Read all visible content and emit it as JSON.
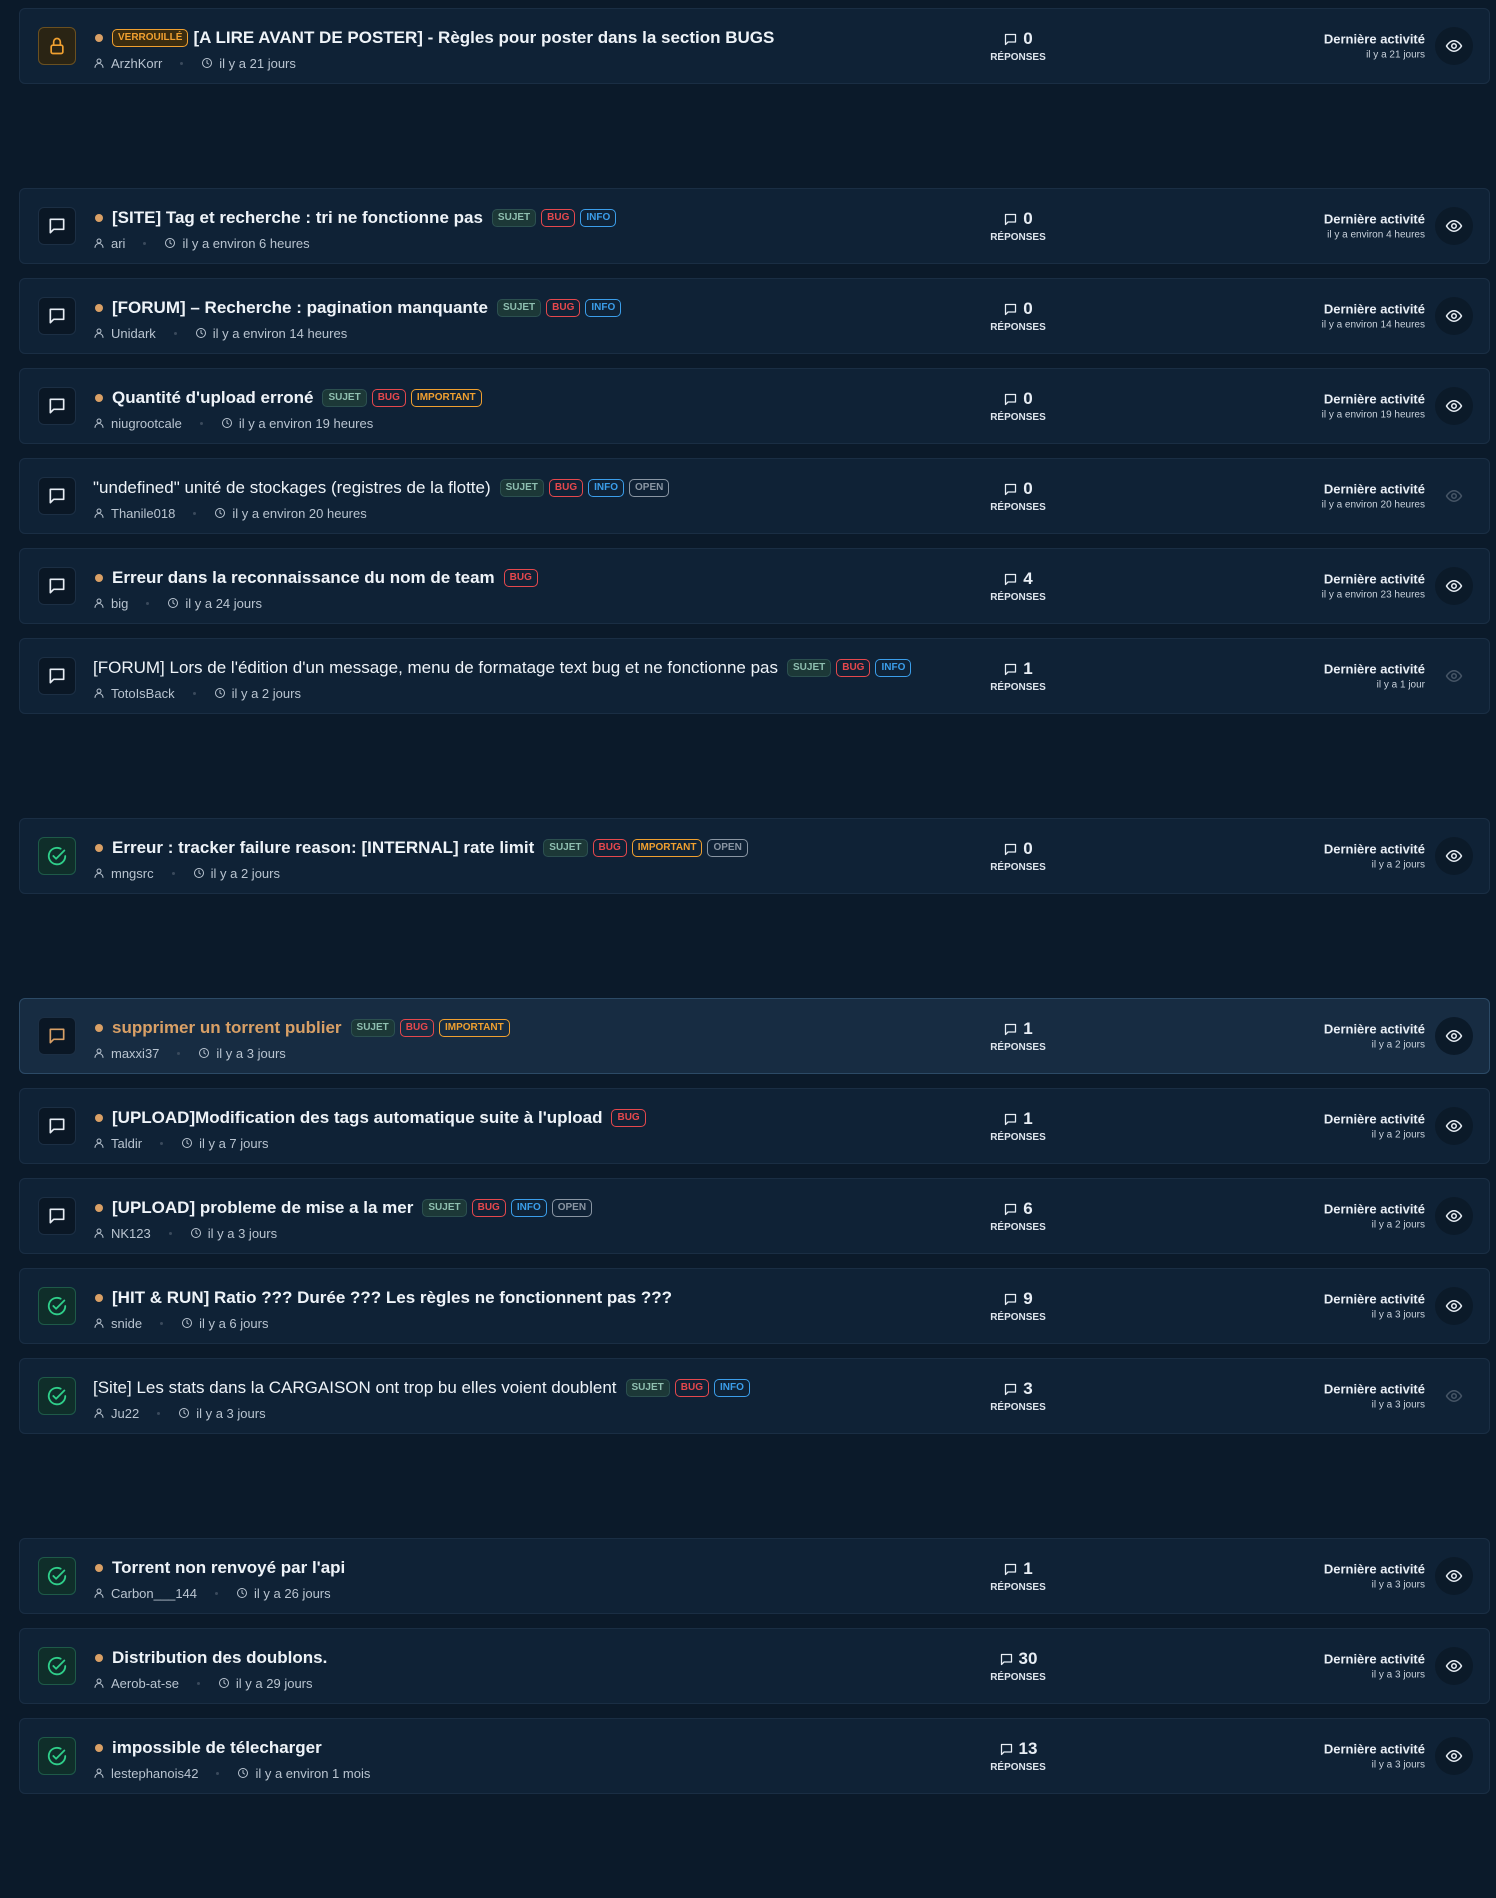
{
  "labels": {
    "replies": "RÉPONSES",
    "last_activity": "Dernière activité"
  },
  "tag_colors": {
    "VERROUILLÉ": "#f0a030",
    "SUJET": "#8fbfb0",
    "BUG": "#e5484d",
    "INFO": "#3b9eea",
    "IMPORTANT": "#f0a030",
    "OPEN": "#8a96a3"
  },
  "groups": [
    {
      "threads": [
        {
          "icon": "locked",
          "unread": true,
          "badge": "VERROUILLÉ",
          "title": "[A LIRE AVANT DE POSTER] - Règles pour poster dans la section BUGS",
          "tags": [],
          "author": "ArzhKorr",
          "time": "il y a 21 jours",
          "replies": 0,
          "last": "il y a 21 jours",
          "eye_dim": false
        }
      ]
    },
    {
      "threads": [
        {
          "icon": "open",
          "unread": true,
          "title": "[SITE] Tag et recherche : tri ne fonctionne pas",
          "tags": [
            "SUJET",
            "BUG",
            "INFO"
          ],
          "author": "ari",
          "time": "il y a environ 6 heures",
          "replies": 0,
          "last": "il y a environ 4 heures",
          "eye_dim": false
        },
        {
          "icon": "open",
          "unread": true,
          "title": "[FORUM] – Recherche : pagination manquante",
          "tags": [
            "SUJET",
            "BUG",
            "INFO"
          ],
          "author": "Unidark",
          "time": "il y a environ 14 heures",
          "replies": 0,
          "last": "il y a environ 14 heures",
          "eye_dim": false
        },
        {
          "icon": "open",
          "unread": true,
          "title": "Quantité d'upload erroné",
          "tags": [
            "SUJET",
            "BUG",
            "IMPORTANT"
          ],
          "author": "niugrootcale",
          "time": "il y a environ 19 heures",
          "replies": 0,
          "last": "il y a environ 19 heures",
          "eye_dim": false
        },
        {
          "icon": "open",
          "unread": false,
          "title": "\"undefined\" unité de stockages (registres de la flotte)",
          "tags": [
            "SUJET",
            "BUG",
            "INFO",
            "OPEN"
          ],
          "author": "Thanile018",
          "time": "il y a environ 20 heures",
          "replies": 0,
          "last": "il y a environ 20 heures",
          "eye_dim": true
        },
        {
          "icon": "open",
          "unread": true,
          "title": "Erreur dans la reconnaissance du nom de team",
          "tags": [
            "BUG"
          ],
          "author": "big",
          "time": "il y a 24 jours",
          "replies": 4,
          "last": "il y a environ 23 heures",
          "eye_dim": false
        },
        {
          "icon": "open",
          "unread": false,
          "title": "[FORUM] Lors de l'édition d'un message, menu de formatage text bug et ne fonctionne pas",
          "tags": [
            "SUJET",
            "BUG",
            "INFO"
          ],
          "author": "TotoIsBack",
          "time": "il y a 2 jours",
          "replies": 1,
          "last": "il y a 1 jour",
          "eye_dim": true
        }
      ]
    },
    {
      "threads": [
        {
          "icon": "solved",
          "unread": true,
          "title": "Erreur : tracker failure reason: [INTERNAL] rate limit",
          "tags": [
            "SUJET",
            "BUG",
            "IMPORTANT",
            "OPEN"
          ],
          "author": "mngsrc",
          "time": "il y a 2 jours",
          "replies": 0,
          "last": "il y a 2 jours",
          "eye_dim": false
        }
      ]
    },
    {
      "threads": [
        {
          "icon": "open",
          "unread": true,
          "highlighted": true,
          "title": "supprimer un torrent publier",
          "tags": [
            "SUJET",
            "BUG",
            "IMPORTANT"
          ],
          "author": "maxxi37",
          "time": "il y a 3 jours",
          "replies": 1,
          "last": "il y a 2 jours",
          "eye_dim": false
        },
        {
          "icon": "open",
          "unread": true,
          "title": "[UPLOAD]Modification des tags automatique suite à l'upload",
          "tags": [
            "BUG"
          ],
          "author": "Taldir",
          "time": "il y a 7 jours",
          "replies": 1,
          "last": "il y a 2 jours",
          "eye_dim": false
        },
        {
          "icon": "open",
          "unread": true,
          "title": "[UPLOAD] probleme de mise a la mer",
          "tags": [
            "SUJET",
            "BUG",
            "INFO",
            "OPEN"
          ],
          "author": "NK123",
          "time": "il y a 3 jours",
          "replies": 6,
          "last": "il y a 2 jours",
          "eye_dim": false
        },
        {
          "icon": "solved",
          "unread": true,
          "title": "[HIT & RUN] Ratio ??? Durée ??? Les règles ne fonctionnent pas ???",
          "tags": [],
          "author": "snide",
          "time": "il y a 6 jours",
          "replies": 9,
          "last": "il y a 3 jours",
          "eye_dim": false
        },
        {
          "icon": "solved",
          "unread": false,
          "title": "[Site] Les stats dans la CARGAISON ont trop bu elles voient doublent",
          "tags": [
            "SUJET",
            "BUG",
            "INFO"
          ],
          "author": "Ju22",
          "time": "il y a 3 jours",
          "replies": 3,
          "last": "il y a 3 jours",
          "eye_dim": true
        }
      ]
    },
    {
      "threads": [
        {
          "icon": "solved",
          "unread": true,
          "title": "Torrent non renvoyé par l'api",
          "tags": [],
          "author": "Carbon___144",
          "time": "il y a 26 jours",
          "replies": 1,
          "last": "il y a 3 jours",
          "eye_dim": false
        },
        {
          "icon": "solved",
          "unread": true,
          "title": "Distribution des doublons.",
          "tags": [],
          "author": "Aerob-at-se",
          "time": "il y a 29 jours",
          "replies": 30,
          "last": "il y a 3 jours",
          "eye_dim": false
        },
        {
          "icon": "solved",
          "unread": true,
          "title": "impossible de télecharger",
          "tags": [],
          "author": "lestephanois42",
          "time": "il y a environ 1 mois",
          "replies": 13,
          "last": "il y a 3 jours",
          "eye_dim": false
        }
      ]
    }
  ]
}
